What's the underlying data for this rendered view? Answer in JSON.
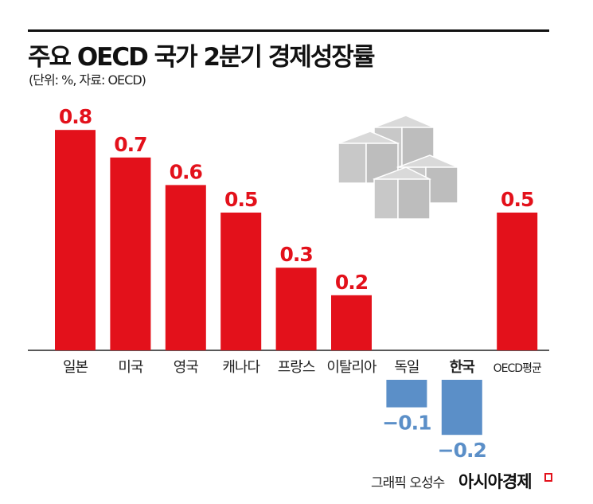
{
  "title": "주요 OECD 국가 2분기 경제성장률",
  "subtitle": "(단위: %, 자료: OECD)",
  "credit": "그래픽 오성수",
  "brand": "아시아경제",
  "chart_data": {
    "type": "bar",
    "categories": [
      "일본",
      "미국",
      "영국",
      "캐나다",
      "프랑스",
      "이탈리아",
      "독일",
      "한국",
      "OECD평균"
    ],
    "values": [
      0.8,
      0.7,
      0.6,
      0.5,
      0.3,
      0.2,
      -0.1,
      -0.2,
      0.5
    ],
    "value_labels": [
      "0.8",
      "0.7",
      "0.6",
      "0.5",
      "0.3",
      "0.2",
      "−0.1",
      "−0.2",
      "0.5"
    ],
    "highlight_category": "한국",
    "colors": {
      "positive": "#e3111b",
      "negative": "#5b8fc8"
    },
    "title": "주요 OECD 국가 2분기 경제성장률",
    "ylabel": "",
    "ylim": [
      -0.2,
      0.8
    ],
    "grid": false
  }
}
